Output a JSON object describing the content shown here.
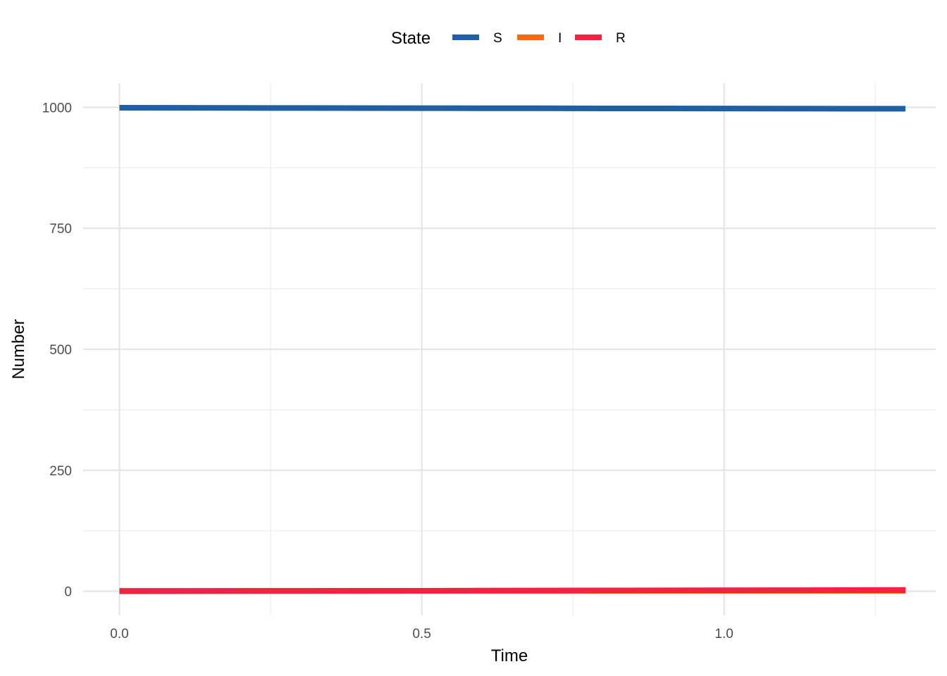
{
  "chart_data": {
    "type": "line",
    "xlabel": "Time",
    "ylabel": "Number",
    "xlim": [
      -0.06,
      1.35
    ],
    "ylim": [
      -50,
      1050
    ],
    "x_ticks": [
      0.0,
      0.5,
      1.0
    ],
    "x_tick_labels": [
      "0.0",
      "0.5",
      "1.0"
    ],
    "x_minor_ticks": [
      0.25,
      0.75,
      1.25
    ],
    "y_ticks": [
      0,
      250,
      500,
      750,
      1000
    ],
    "y_tick_labels": [
      "0",
      "250",
      "500",
      "750",
      "1000"
    ],
    "y_minor_ticks": [
      125,
      375,
      625,
      875
    ],
    "grid": true,
    "legend": {
      "title": "State",
      "position": "top",
      "entries": [
        "S",
        "I",
        "R"
      ]
    },
    "series": [
      {
        "name": "S",
        "color": "#1f5fa3",
        "x": [
          0.0,
          0.1,
          0.2,
          0.3,
          0.4,
          0.5,
          0.6,
          0.7,
          0.8,
          0.9,
          1.0,
          1.1,
          1.2,
          1.3
        ],
        "values": [
          999,
          998.9,
          998.7,
          998.5,
          998.4,
          998.2,
          998,
          997.9,
          997.7,
          997.6,
          997.4,
          997.3,
          997.1,
          997
        ]
      },
      {
        "name": "I",
        "color": "#f46b14",
        "x": [
          0.0,
          0.1,
          0.2,
          0.3,
          0.4,
          0.5,
          0.6,
          0.7,
          0.8,
          0.9,
          1.0,
          1.1,
          1.2,
          1.3
        ],
        "values": [
          1,
          1,
          1,
          1,
          1,
          1,
          1,
          1,
          1,
          1,
          1,
          1,
          1,
          1
        ]
      },
      {
        "name": "R",
        "color": "#f02440",
        "x": [
          0.0,
          0.1,
          0.2,
          0.3,
          0.4,
          0.5,
          0.6,
          0.7,
          0.8,
          0.9,
          1.0,
          1.1,
          1.2,
          1.3
        ],
        "values": [
          0,
          0.2,
          0.4,
          0.6,
          0.8,
          1.0,
          1.2,
          1.4,
          1.6,
          1.8,
          2.0,
          2.2,
          2.4,
          2.6
        ]
      }
    ]
  }
}
